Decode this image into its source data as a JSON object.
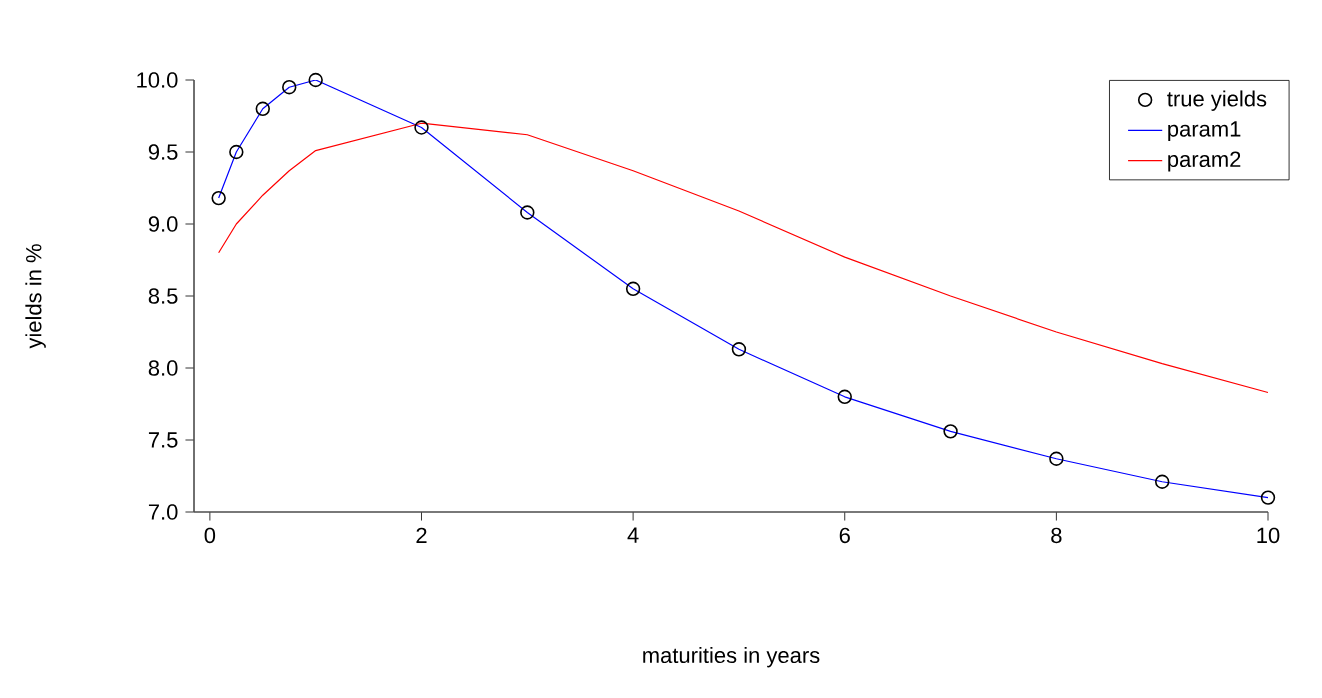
{
  "chart_data": {
    "type": "line",
    "xlabel": "maturities in years",
    "ylabel": "yields in %",
    "xlim": [
      -0.15,
      10
    ],
    "ylim": [
      7.0,
      10.0
    ],
    "xticks": [
      0,
      2,
      4,
      6,
      8,
      10
    ],
    "yticks": [
      {
        "value": 7.0,
        "label": "7.0"
      },
      {
        "value": 7.5,
        "label": "7.5"
      },
      {
        "value": 8.0,
        "label": "8.0"
      },
      {
        "value": 8.5,
        "label": "8.5"
      },
      {
        "value": 9.0,
        "label": "9.0"
      },
      {
        "value": 9.5,
        "label": "9.5"
      },
      {
        "value": 10.0,
        "label": "10.0"
      }
    ],
    "legend": "top right",
    "grid": false,
    "series": [
      {
        "name": "true yields",
        "type": "scatter",
        "marker": "circle",
        "color": "#000000",
        "x": [
          0.083,
          0.25,
          0.5,
          0.75,
          1,
          2,
          3,
          4,
          5,
          6,
          7,
          8,
          9,
          10
        ],
        "values": [
          9.18,
          9.5,
          9.8,
          9.95,
          10.0,
          9.67,
          9.08,
          8.55,
          8.13,
          7.8,
          7.56,
          7.37,
          7.21,
          7.1
        ]
      },
      {
        "name": "param1",
        "color": "#0000ff",
        "x": [
          0.083,
          0.25,
          0.5,
          0.75,
          1,
          2,
          3,
          4,
          5,
          6,
          7,
          8,
          9,
          10
        ],
        "values": [
          9.18,
          9.5,
          9.8,
          9.95,
          10.0,
          9.67,
          9.08,
          8.55,
          8.13,
          7.8,
          7.56,
          7.37,
          7.21,
          7.1
        ]
      },
      {
        "name": "param2",
        "color": "#ff0000",
        "x": [
          0.083,
          0.25,
          0.5,
          0.75,
          1,
          2,
          3,
          4,
          5,
          6,
          7,
          8,
          9,
          10
        ],
        "values": [
          8.8,
          9.0,
          9.2,
          9.37,
          9.51,
          9.7,
          9.62,
          9.37,
          9.09,
          8.77,
          8.5,
          8.25,
          8.03,
          7.83
        ]
      }
    ]
  }
}
